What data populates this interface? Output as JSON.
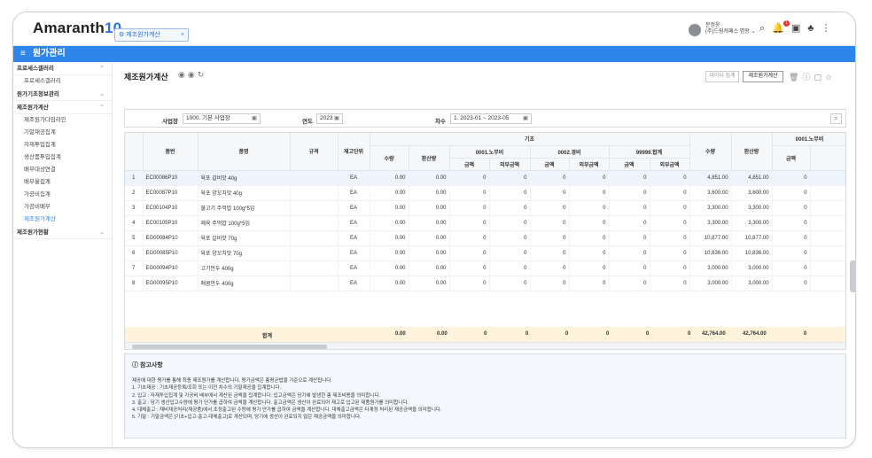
{
  "app": {
    "logo_text": "Amaranth",
    "logo_num": "10",
    "tab_label": "제조원가계산",
    "user_name": "문정윤",
    "user_org": "(주)드림캐패스 명왕",
    "notif_count": "1"
  },
  "nav": {
    "title": "원가관리"
  },
  "sidebar": {
    "groups": [
      {
        "label": "프로세스갤러리",
        "items": [
          "프로세스갤러리"
        ]
      },
      {
        "label": "원가기초정보관리",
        "items": []
      },
      {
        "label": "제조원가계산",
        "items": [
          "제조원가다임라인",
          "기말재공집계",
          "자재투입집계",
          "생산품투입집계",
          "배부대상연결",
          "배부율집계",
          "가공비집계",
          "가공비배부",
          "제조원가계산"
        ]
      },
      {
        "label": "제조원가현황",
        "items": []
      }
    ]
  },
  "page": {
    "title": "제조원가계산",
    "btn_data": "데이터 집계",
    "btn_calc": "제조원가계산"
  },
  "filter": {
    "site_label": "사업장",
    "site_value": "1000. 기본 사업장",
    "year_label": "연도",
    "year_value": "2023",
    "period_label": "차수",
    "period_value": "1. 2023-01 ~ 2023-05"
  },
  "table": {
    "headers": {
      "no": "",
      "code": "품번",
      "name": "품명",
      "spec": "규격",
      "unit": "재고단위",
      "base": "기초",
      "qty": "수량",
      "conv": "환산량",
      "g1": "0001.노무비",
      "g2": "0002.경비",
      "g3": "99999.합계",
      "amt": "금액",
      "ext": "외부금액",
      "qty2": "수량",
      "conv2": "환산량",
      "g4": "0001.노무비",
      "amt4": "금액"
    },
    "rows": [
      {
        "no": "1",
        "code": "EC00086P10",
        "name": "육포 갈비맛 40g",
        "unit": "EA",
        "qty": "0.00",
        "conv": "0.00",
        "a1": "0",
        "e1": "0",
        "a2": "0",
        "e2": "0",
        "a3": "0",
        "e3": "0",
        "q2": "4,851.00",
        "c2": "4,851.00",
        "a4": "0"
      },
      {
        "no": "2",
        "code": "EC00087P10",
        "name": "육포 양꼬치맛 40g",
        "unit": "EA",
        "qty": "0.00",
        "conv": "0.00",
        "a1": "0",
        "e1": "0",
        "a2": "0",
        "e2": "0",
        "a3": "0",
        "e3": "0",
        "q2": "3,600.00",
        "c2": "3,600.00",
        "a4": "0"
      },
      {
        "no": "3",
        "code": "EC00104P10",
        "name": "불고기 주먹밥 100g*5입",
        "unit": "EA",
        "qty": "0.00",
        "conv": "0.00",
        "a1": "0",
        "e1": "0",
        "a2": "0",
        "e2": "0",
        "a3": "0",
        "e3": "0",
        "q2": "3,300.00",
        "c2": "3,300.00",
        "a4": "0"
      },
      {
        "no": "4",
        "code": "EC00105P10",
        "name": "제육 주먹밥 100g*5입",
        "unit": "EA",
        "qty": "0.00",
        "conv": "0.00",
        "a1": "0",
        "e1": "0",
        "a2": "0",
        "e2": "0",
        "a3": "0",
        "e3": "0",
        "q2": "3,300.00",
        "c2": "3,300.00",
        "a4": "0"
      },
      {
        "no": "5",
        "code": "EG00084P10",
        "name": "육포 갈비맛 70g",
        "unit": "EA",
        "qty": "0.00",
        "conv": "0.00",
        "a1": "0",
        "e1": "0",
        "a2": "0",
        "e2": "0",
        "a3": "0",
        "e3": "0",
        "q2": "10,877.00",
        "c2": "10,877.00",
        "a4": "0"
      },
      {
        "no": "6",
        "code": "EG00085P10",
        "name": "육포 양꼬치맛 70g",
        "unit": "EA",
        "qty": "0.00",
        "conv": "0.00",
        "a1": "0",
        "e1": "0",
        "a2": "0",
        "e2": "0",
        "a3": "0",
        "e3": "0",
        "q2": "10,836.00",
        "c2": "10,836.00",
        "a4": "0"
      },
      {
        "no": "7",
        "code": "EG00094P10",
        "name": "고기만두 400g",
        "unit": "EA",
        "qty": "0.00",
        "conv": "0.00",
        "a1": "0",
        "e1": "0",
        "a2": "0",
        "e2": "0",
        "a3": "0",
        "e3": "0",
        "q2": "3,000.00",
        "c2": "3,000.00",
        "a4": "0"
      },
      {
        "no": "8",
        "code": "EG00095P10",
        "name": "매콤만두 400g",
        "unit": "EA",
        "qty": "0.00",
        "conv": "0.00",
        "a1": "0",
        "e1": "0",
        "a2": "0",
        "e2": "0",
        "a3": "0",
        "e3": "0",
        "q2": "3,000.00",
        "c2": "3,000.00",
        "a4": "0"
      }
    ],
    "sum": {
      "label": "합계",
      "qty": "0.00",
      "conv": "0.00",
      "a1": "0",
      "e1": "0",
      "a2": "0",
      "e2": "0",
      "a3": "0",
      "e3": "0",
      "q2": "42,764.00",
      "c2": "42,764.00",
      "a4": "0"
    }
  },
  "notes": {
    "title": "참고사항",
    "lines": [
      "제공에 대한 평가를 통해 최종 제조원가를 계산합니다. 평가금액은 총평균법을 기준으로 계산됩니다.",
      "1. 기초재공 : 기초재공등록/조회 또는 이전 차수의 기말재공을 집계합니다.",
      "2. 입고 : 자재투입집계 및 가공비 배부에서 계산된 금액을 집계합니다. 입고금액은 당기에 발생한 총 제조비용을 의미합니다.",
      "3. 출고 : 당기 생산입고수량에 평가 단가를 곱하여 금액을 계산합니다. 출고금액은 생산이 완료되어 재고로 입고된 제품원가를 의미합니다.",
      "4. 대체출고 : 재비재공처리(재공품)에서 조정출고된 수량에 평가 단가를 곱하여 금액을 계산합니다. 대체출고금액은 타계정 처리된 재공금액을 의미합니다.",
      "5. 기말 : 기말금액은 [기초+입고-출고-대체출고]로 계산되며, 당기에 생산이 완료되지 않은 재공금액을 의미합니다."
    ]
  }
}
